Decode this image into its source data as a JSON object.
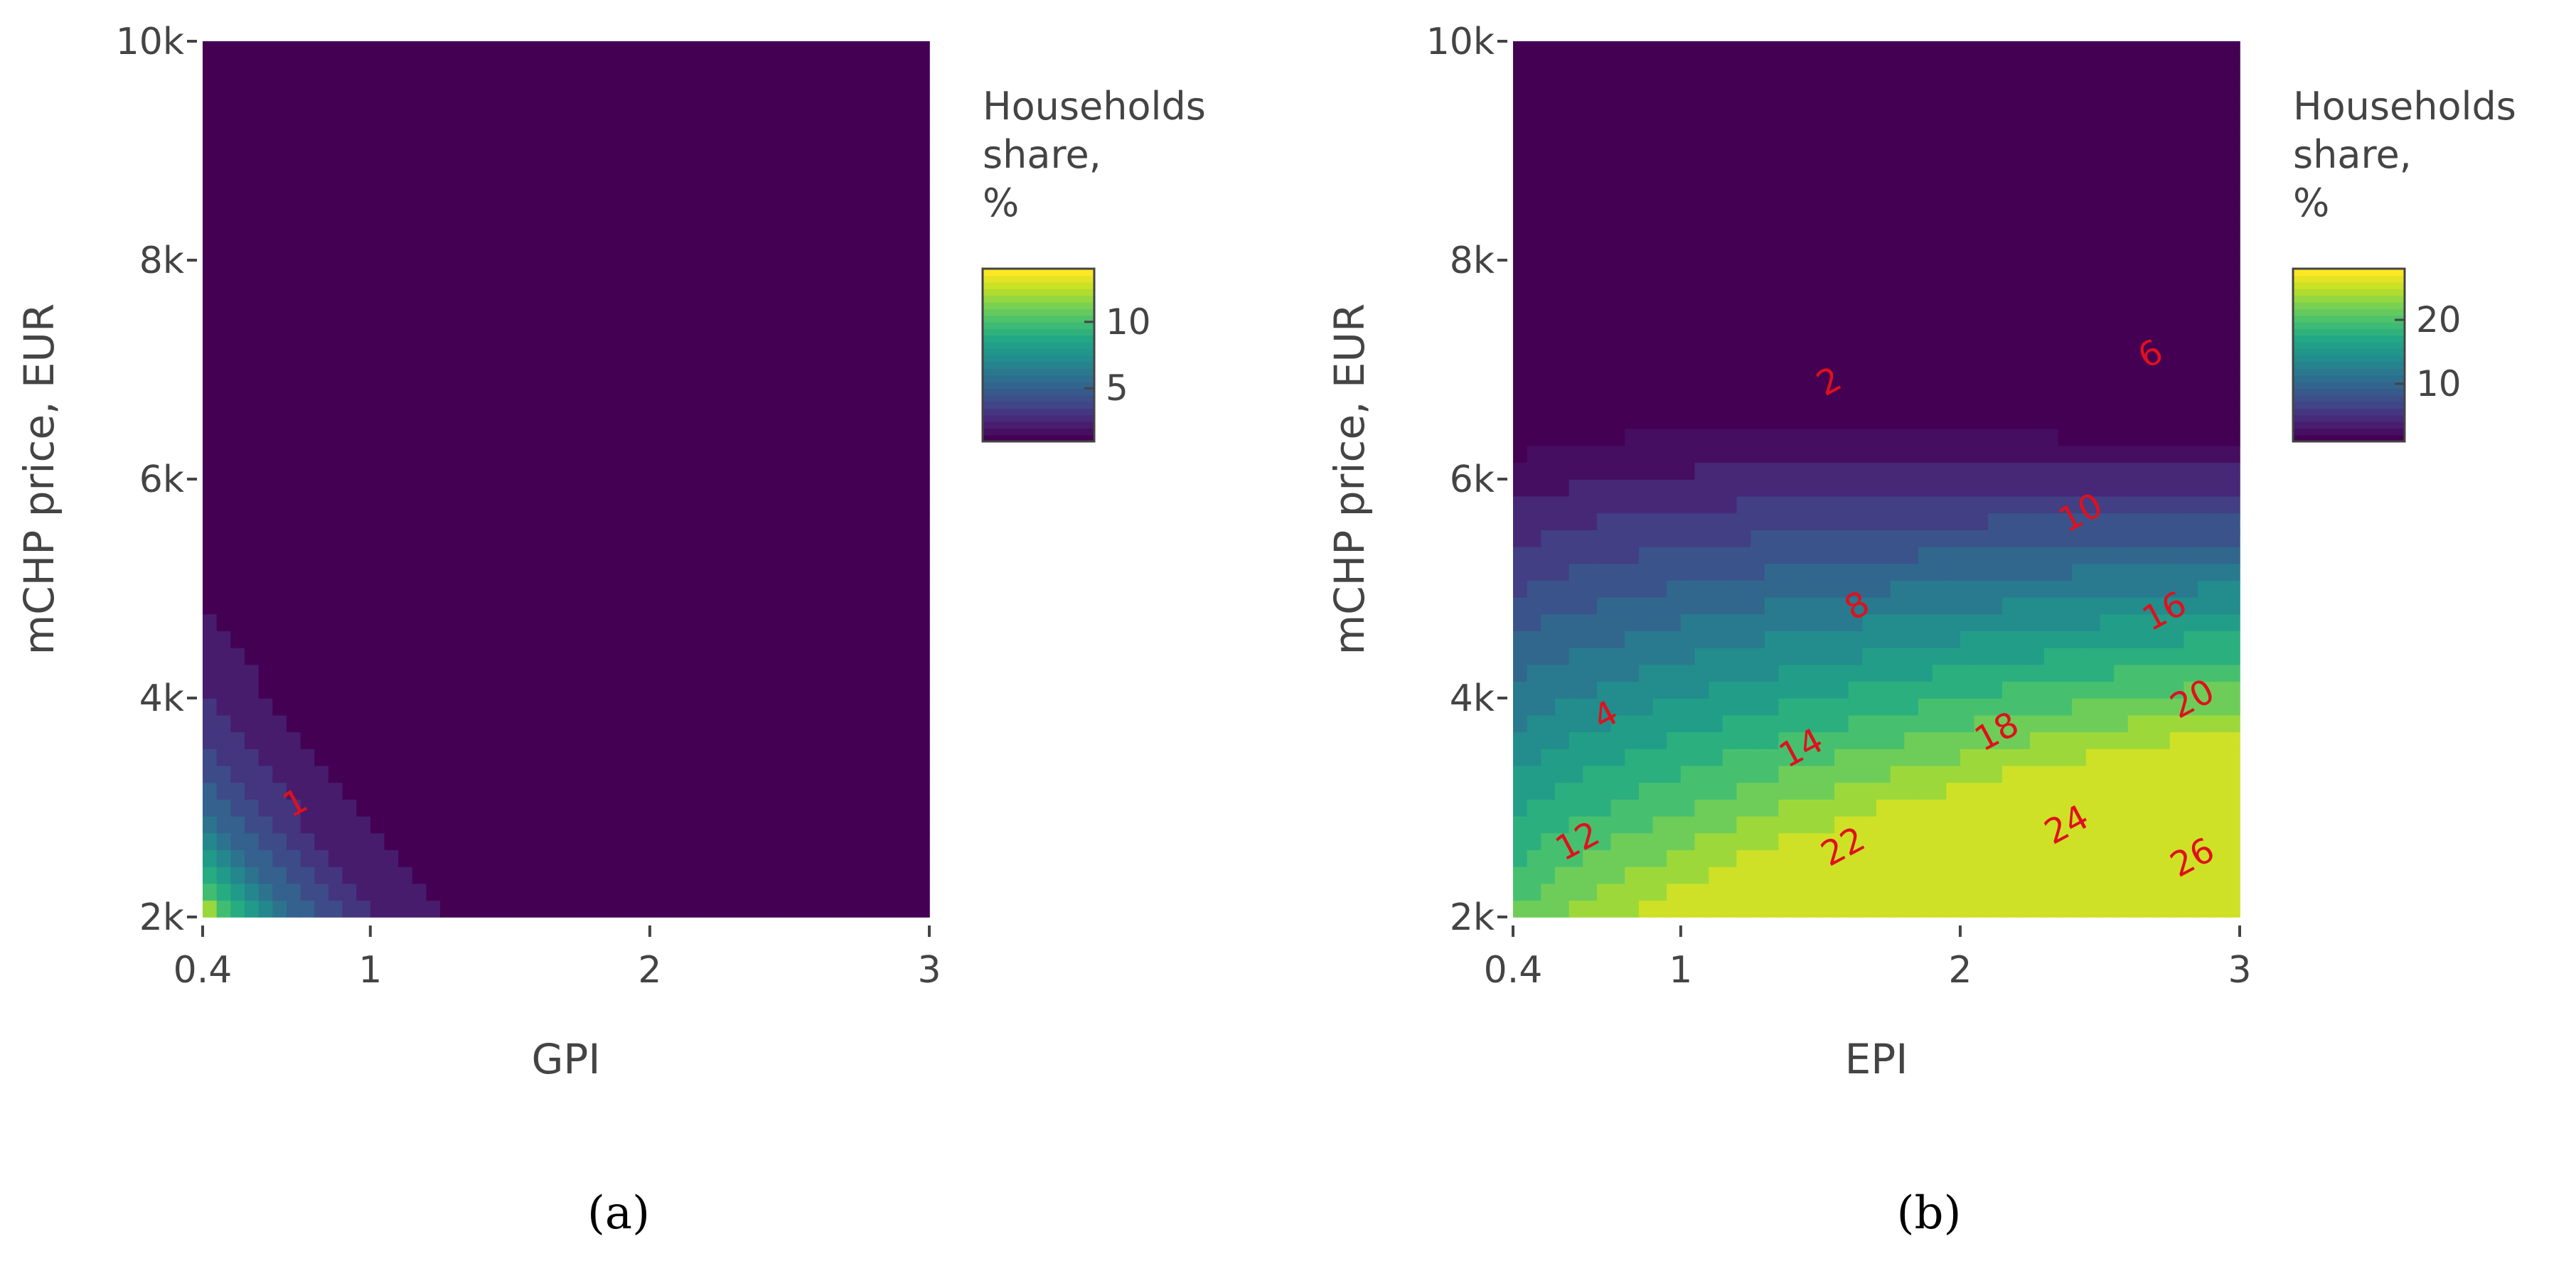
{
  "colors": {
    "viridis": [
      "#440154",
      "#482475",
      "#414487",
      "#355f8d",
      "#2a788e",
      "#21918c",
      "#22a884",
      "#44bf70",
      "#7ad151",
      "#bddf26",
      "#fde725"
    ],
    "contour_label": "#e0101c",
    "axis_text": "#444444"
  },
  "chart_data": [
    {
      "type": "contour",
      "panel_label": "(a)",
      "xlabel": "GPI",
      "ylabel": "mCHP price, EUR",
      "x_ticks": [
        "0.4",
        "1",
        "2",
        "3"
      ],
      "x_tick_values": [
        0.4,
        1,
        2,
        3
      ],
      "y_ticks": [
        "2k",
        "4k",
        "6k",
        "8k",
        "10k"
      ],
      "y_tick_values": [
        2000,
        4000,
        6000,
        8000,
        10000
      ],
      "xlim": [
        0.4,
        3
      ],
      "ylim": [
        2000,
        10000
      ],
      "colorbar": {
        "title": [
          "Households",
          "share,",
          " %"
        ],
        "range": [
          1,
          14
        ],
        "ticks": [
          "5",
          "10"
        ],
        "tick_values": [
          5,
          10
        ]
      },
      "z_model": {
        "z_min": 1,
        "z_max": 14,
        "scale": 13,
        "x_ref": 0.4,
        "y_ref": 2000,
        "x_decay": 1.9,
        "y_decay": 0.00092
      },
      "contour_levels": [
        1,
        2,
        3,
        4,
        5,
        6,
        7,
        8,
        9,
        10,
        11,
        12,
        13
      ],
      "contour_labels": [
        {
          "text": "1",
          "x": 0.75,
          "y": 2950
        }
      ]
    },
    {
      "type": "contour",
      "panel_label": "(b)",
      "xlabel": "EPI",
      "ylabel": "mCHP price, EUR",
      "x_ticks": [
        "0.4",
        "1",
        "2",
        "3"
      ],
      "x_tick_values": [
        0.4,
        1,
        2,
        3
      ],
      "y_ticks": [
        "2k",
        "4k",
        "6k",
        "8k",
        "10k"
      ],
      "y_tick_values": [
        2000,
        4000,
        6000,
        8000,
        10000
      ],
      "xlim": [
        0.4,
        3
      ],
      "ylim": [
        2000,
        10000
      ],
      "colorbar": {
        "title": [
          "Households",
          "share,",
          " %"
        ],
        "range": [
          1,
          28
        ],
        "ticks": [
          "10",
          "20"
        ],
        "tick_values": [
          10,
          20
        ]
      },
      "z_model": {
        "z_min": 1,
        "z_max": 28,
        "x_ref": 0.4,
        "y_ref": 2000,
        "x_gain": 9.8,
        "y_gain": 0.0048,
        "x_exp": 0.85,
        "offset": 21.5
      },
      "contour_levels": [
        2,
        4,
        6,
        8,
        10,
        12,
        14,
        16,
        18,
        20,
        22,
        24,
        26
      ],
      "contour_labels": [
        {
          "text": "2",
          "x": 1.55,
          "y": 6800
        },
        {
          "text": "4",
          "x": 0.75,
          "y": 3750
        },
        {
          "text": "6",
          "x": 2.7,
          "y": 7050
        },
        {
          "text": "8",
          "x": 1.65,
          "y": 4750
        },
        {
          "text": "10",
          "x": 2.45,
          "y": 5600
        },
        {
          "text": "12",
          "x": 0.65,
          "y": 2600
        },
        {
          "text": "14",
          "x": 1.45,
          "y": 3450
        },
        {
          "text": "16",
          "x": 2.75,
          "y": 4700
        },
        {
          "text": "18",
          "x": 2.15,
          "y": 3600
        },
        {
          "text": "20",
          "x": 2.85,
          "y": 3900
        },
        {
          "text": "22",
          "x": 1.6,
          "y": 2550
        },
        {
          "text": "24",
          "x": 2.4,
          "y": 2750
        },
        {
          "text": "26",
          "x": 2.85,
          "y": 2450
        }
      ]
    }
  ]
}
